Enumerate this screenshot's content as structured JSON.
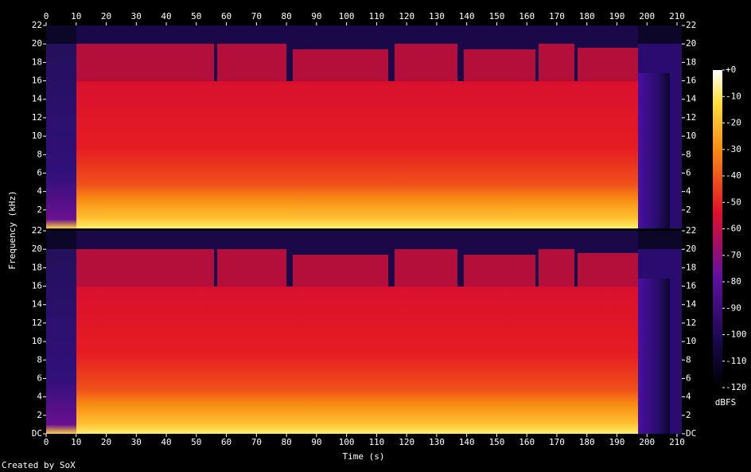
{
  "chart_data": {
    "type": "spectrogram",
    "x_label": "Time (s)",
    "y_label": "Frequency (kHz)",
    "xlim": [
      0,
      210
    ],
    "xticks": [
      0,
      10,
      20,
      30,
      40,
      50,
      60,
      70,
      80,
      90,
      100,
      110,
      120,
      130,
      140,
      150,
      160,
      170,
      180,
      190,
      200,
      210
    ],
    "channels": [
      {
        "ylim": [
          0,
          22
        ],
        "yticks": [
          2,
          4,
          6,
          8,
          10,
          12,
          14,
          16,
          18,
          20,
          22
        ]
      },
      {
        "ylim": [
          0,
          22
        ],
        "yticks": [
          {
            "value": 0,
            "label": "DC"
          },
          2,
          4,
          6,
          8,
          10,
          12,
          14,
          16,
          18,
          20,
          22
        ]
      }
    ],
    "colorbar": {
      "label": "dBFS",
      "zlim": [
        -120,
        0
      ],
      "ticks": [
        {
          "value": 0,
          "label": "+0"
        },
        -10,
        -20,
        -30,
        -40,
        -50,
        -60,
        -70,
        -80,
        -90,
        -100,
        -110,
        -120
      ]
    },
    "footer": "Created by SoX"
  }
}
